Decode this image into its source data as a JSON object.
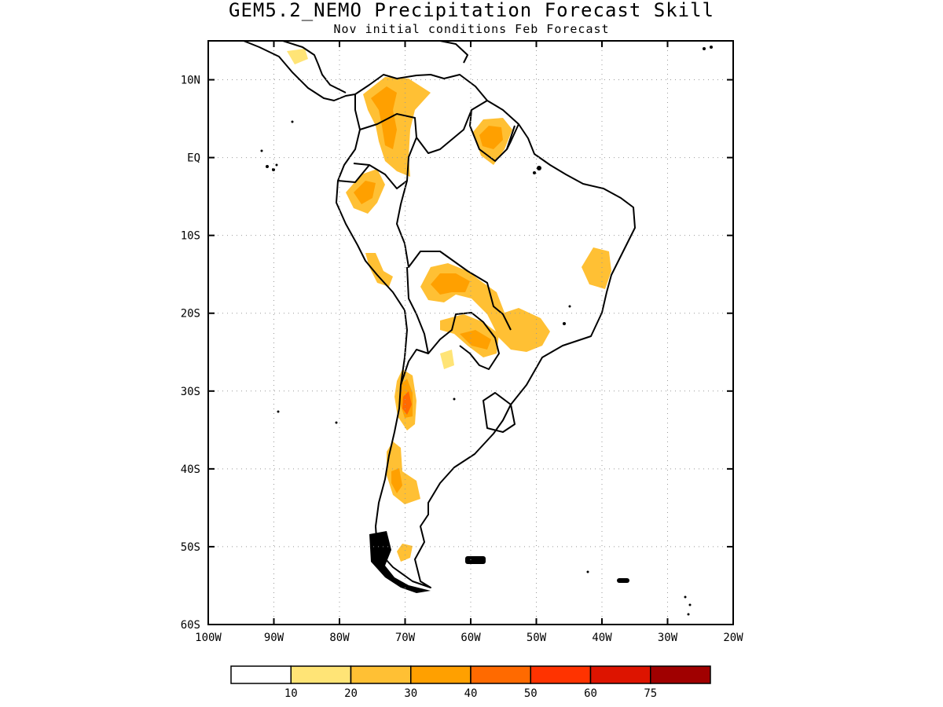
{
  "title": "GEM5.2_NEMO Precipitation Forecast Skill",
  "subtitle": "Nov initial conditions  Feb Forecast",
  "map": {
    "region": "South America",
    "lon_range": [
      -100,
      -20
    ],
    "lat_range": [
      -60,
      15
    ],
    "grid": "dotted",
    "lat_ticks": [
      {
        "label": "10N",
        "lat": 10
      },
      {
        "label": "EQ",
        "lat": 0
      },
      {
        "label": "10S",
        "lat": -10
      },
      {
        "label": "20S",
        "lat": -20
      },
      {
        "label": "30S",
        "lat": -30
      },
      {
        "label": "40S",
        "lat": -40
      },
      {
        "label": "50S",
        "lat": -50
      },
      {
        "label": "60S",
        "lat": -60
      }
    ],
    "lon_ticks": [
      {
        "label": "100W",
        "lon": -100
      },
      {
        "label": "90W",
        "lon": -90
      },
      {
        "label": "80W",
        "lon": -80
      },
      {
        "label": "70W",
        "lon": -70
      },
      {
        "label": "60W",
        "lon": -60
      },
      {
        "label": "50W",
        "lon": -50
      },
      {
        "label": "40W",
        "lon": -40
      },
      {
        "label": "30W",
        "lon": -30
      },
      {
        "label": "20W",
        "lon": -20
      }
    ]
  },
  "colorbar": {
    "colors": [
      "#ffffff",
      "#ffe476",
      "#ffc034",
      "#ffa000",
      "#ff6a00",
      "#ff3300",
      "#dd1400",
      "#a00000"
    ],
    "labels": [
      "10",
      "20",
      "30",
      "40",
      "50",
      "60",
      "75"
    ]
  },
  "skill_regions": [
    {
      "name": "colombia-venezuela",
      "level": 20
    },
    {
      "name": "colombia-venezuela-core",
      "level": 30
    },
    {
      "name": "guyana",
      "level": 20
    },
    {
      "name": "guyana-core",
      "level": 30
    },
    {
      "name": "ecuador-peru-north",
      "level": 20
    },
    {
      "name": "ecuador-peru-north-core",
      "level": 30
    },
    {
      "name": "peru-central",
      "level": 20
    },
    {
      "name": "bolivia-brazil",
      "level": 20
    },
    {
      "name": "bolivia-brazil-core",
      "level": 30
    },
    {
      "name": "paraguay-brazil-south",
      "level": 20
    },
    {
      "name": "paraguay-brazil-south-core",
      "level": 30
    },
    {
      "name": "brazil-east",
      "level": 20
    },
    {
      "name": "chile-central",
      "level": 20
    },
    {
      "name": "chile-central-core",
      "level": 30
    },
    {
      "name": "chile-central-peak",
      "level": 40
    },
    {
      "name": "chile-south",
      "level": 20
    },
    {
      "name": "chile-south-core",
      "level": 30
    },
    {
      "name": "patagonia",
      "level": 20
    },
    {
      "name": "argentina-north",
      "level": 10
    },
    {
      "name": "central-america",
      "level": 10
    }
  ]
}
